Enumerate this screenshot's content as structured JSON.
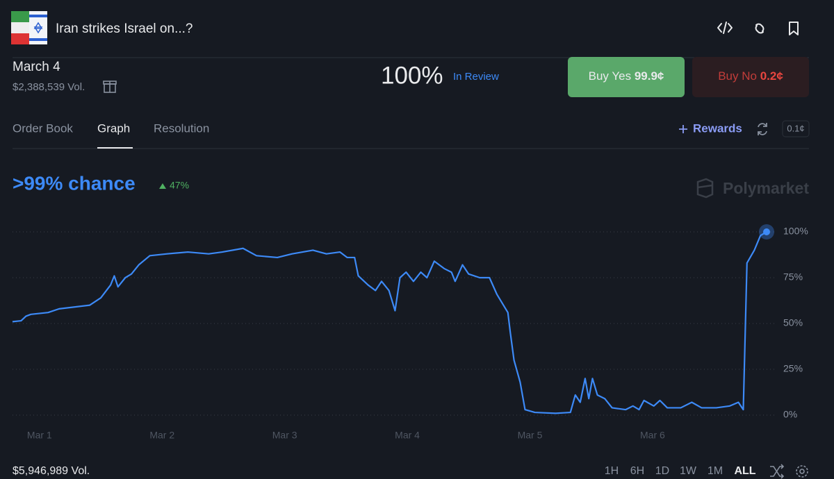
{
  "header": {
    "title": "Iran strikes Israel on...?"
  },
  "market": {
    "name": "March 4",
    "volume": "$2,388,539 Vol.",
    "probability": "100%",
    "status": "In Review",
    "buy_yes": {
      "label": "Buy Yes",
      "price": "99.9¢"
    },
    "buy_no": {
      "label": "Buy No",
      "price": "0.2¢"
    }
  },
  "tabs": [
    "Order Book",
    "Graph",
    "Resolution"
  ],
  "toolbar": {
    "rewards": "Rewards",
    "tick_size": "0.1¢"
  },
  "chart_data": {
    "type": "line",
    "title": ">99% chance",
    "change": "47%",
    "watermark": "Polymarket",
    "color": "#3d8af7",
    "x": [
      0.78,
      0.85,
      0.89,
      0.93,
      1.07,
      1.16,
      1.41,
      1.5,
      1.58,
      1.61,
      1.64,
      1.7,
      1.75,
      1.81,
      1.9,
      2.04,
      2.21,
      2.38,
      2.49,
      2.66,
      2.77,
      2.94,
      3.06,
      3.23,
      3.34,
      3.45,
      3.51,
      3.57,
      3.6,
      3.68,
      3.74,
      3.79,
      3.85,
      3.9,
      3.94,
      3.99,
      4.05,
      4.11,
      4.16,
      4.22,
      4.3,
      4.36,
      4.39,
      4.45,
      4.5,
      4.59,
      4.67,
      4.73,
      4.82,
      4.84,
      4.87,
      4.92,
      4.96,
      5.04,
      5.21,
      5.33,
      5.37,
      5.41,
      5.45,
      5.48,
      5.51,
      5.55,
      5.61,
      5.67,
      5.78,
      5.84,
      5.89,
      5.93,
      6.01,
      6.06,
      6.12,
      6.23,
      6.32,
      6.4,
      6.52,
      6.63,
      6.7,
      6.74,
      6.77,
      6.83,
      6.88,
      6.93
    ],
    "values": [
      51,
      51.5,
      54,
      55,
      56,
      58,
      60,
      64,
      71,
      76,
      70,
      75,
      77,
      82,
      87,
      88,
      89,
      88,
      89,
      91,
      87,
      86,
      88,
      90,
      88,
      89,
      86,
      86,
      76,
      71,
      68,
      73,
      68,
      57,
      75,
      78,
      73,
      78,
      75,
      84,
      80,
      78,
      73,
      82,
      77,
      75,
      75,
      66,
      56,
      45,
      30,
      18,
      3,
      1.5,
      1,
      1.5,
      11,
      7,
      20,
      9,
      20,
      11,
      9,
      4,
      3,
      5,
      3,
      8,
      5,
      8,
      4,
      4,
      7,
      4,
      4,
      5,
      7,
      3,
      83,
      90,
      98,
      100
    ],
    "xlim": [
      0.78,
      6.93
    ],
    "ylim": [
      0,
      100
    ],
    "xticks": [
      {
        "value": 1,
        "label": "Mar 1"
      },
      {
        "value": 2,
        "label": "Mar 2"
      },
      {
        "value": 3,
        "label": "Mar 3"
      },
      {
        "value": 4,
        "label": "Mar 4"
      },
      {
        "value": 5,
        "label": "Mar 5"
      },
      {
        "value": 6,
        "label": "Mar 6"
      }
    ],
    "yticks": [
      {
        "value": 0,
        "label": "0%"
      },
      {
        "value": 25,
        "label": "25%"
      },
      {
        "value": 50,
        "label": "50%"
      },
      {
        "value": 75,
        "label": "75%"
      },
      {
        "value": 100,
        "label": "100%"
      }
    ],
    "grid": true
  },
  "footer": {
    "volume": "$5,946,989 Vol.",
    "ranges": [
      "1H",
      "6H",
      "1D",
      "1W",
      "1M",
      "ALL"
    ]
  }
}
